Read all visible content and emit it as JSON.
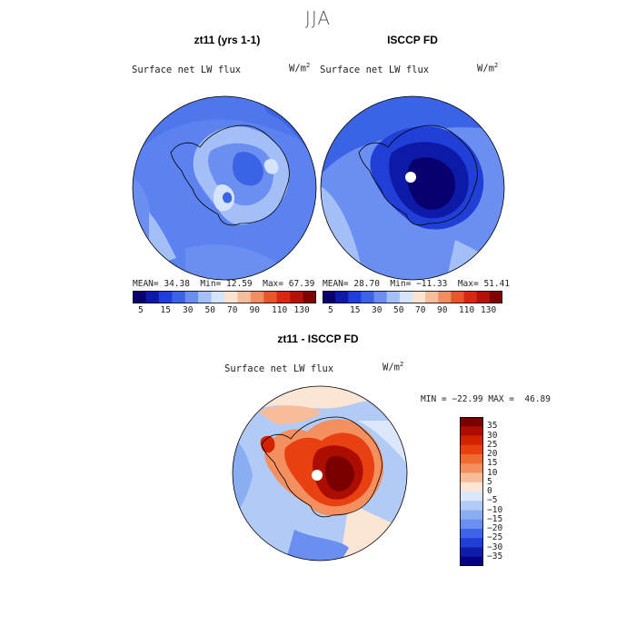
{
  "figure": {
    "season": "JJA",
    "variable": "Surface net LW flux",
    "units_base": "W/m",
    "units_exp": "2"
  },
  "panels": {
    "model": {
      "title": "zt11 (yrs 1-1)",
      "mean_label": "MEAN=",
      "mean": "34.38",
      "min_label": "Min=",
      "min": "12.59",
      "max_label": "Max=",
      "max": "67.39"
    },
    "obs": {
      "title": "ISCCP FD",
      "mean_label": "MEAN=",
      "mean": "28.70",
      "min_label": "Min=",
      "min": "−11.33",
      "max_label": "Max=",
      "max": "51.41"
    },
    "diff": {
      "title": "zt11 - ISCCP FD",
      "stats_text": "MIN = −22.99 MAX =  46.89"
    }
  },
  "colors": {
    "abs_scale": [
      "#08006e",
      "#0d1aa8",
      "#1f3fd6",
      "#3b63e6",
      "#6b8ff0",
      "#a4bff7",
      "#d6e4fb",
      "#fbe3d2",
      "#f6bd9c",
      "#f08e63",
      "#e6562f",
      "#d42a14",
      "#b11308",
      "#7e0000"
    ],
    "diff_scale": [
      "#7a0000",
      "#ab0e00",
      "#d32200",
      "#e84010",
      "#f06a34",
      "#f49060",
      "#f8bd98",
      "#fbe6d6",
      "#dbe8fb",
      "#b2cbf6",
      "#8aaef1",
      "#6a8ff0",
      "#3f63e6",
      "#1f3fd6",
      "#0e1ca8",
      "#050083"
    ],
    "land_outline": "#000000"
  },
  "chart_data": [
    {
      "type": "heatmap",
      "title": "zt11 (yrs 1-1)",
      "subtitle": "Surface net LW flux",
      "units": "W/m2",
      "projection": "south polar stereographic",
      "colorbar_levels": [
        5,
        10,
        15,
        20,
        30,
        40,
        50,
        60,
        70,
        80,
        90,
        100,
        110,
        120,
        130
      ],
      "colorbar_tick_labels": [
        "5",
        "15",
        "30",
        "50",
        "70",
        "90",
        "110",
        "130"
      ],
      "stats": {
        "mean": 34.38,
        "min": 12.59,
        "max": 67.39
      }
    },
    {
      "type": "heatmap",
      "title": "ISCCP FD",
      "subtitle": "Surface net LW flux",
      "units": "W/m2",
      "projection": "south polar stereographic",
      "colorbar_levels": [
        5,
        10,
        15,
        20,
        30,
        40,
        50,
        60,
        70,
        80,
        90,
        100,
        110,
        120,
        130
      ],
      "colorbar_tick_labels": [
        "5",
        "15",
        "30",
        "50",
        "70",
        "90",
        "110",
        "130"
      ],
      "stats": {
        "mean": 28.7,
        "min": -11.33,
        "max": 51.41
      }
    },
    {
      "type": "heatmap",
      "title": "zt11 - ISCCP FD",
      "subtitle": "Surface net LW flux",
      "units": "W/m2",
      "projection": "south polar stereographic",
      "colorbar_tick_labels": [
        "35",
        "30",
        "25",
        "20",
        "15",
        "10",
        "5",
        "0",
        "−5",
        "−10",
        "−15",
        "−20",
        "−25",
        "−30",
        "−35"
      ],
      "stats": {
        "min": -22.99,
        "max": 46.89
      }
    }
  ]
}
